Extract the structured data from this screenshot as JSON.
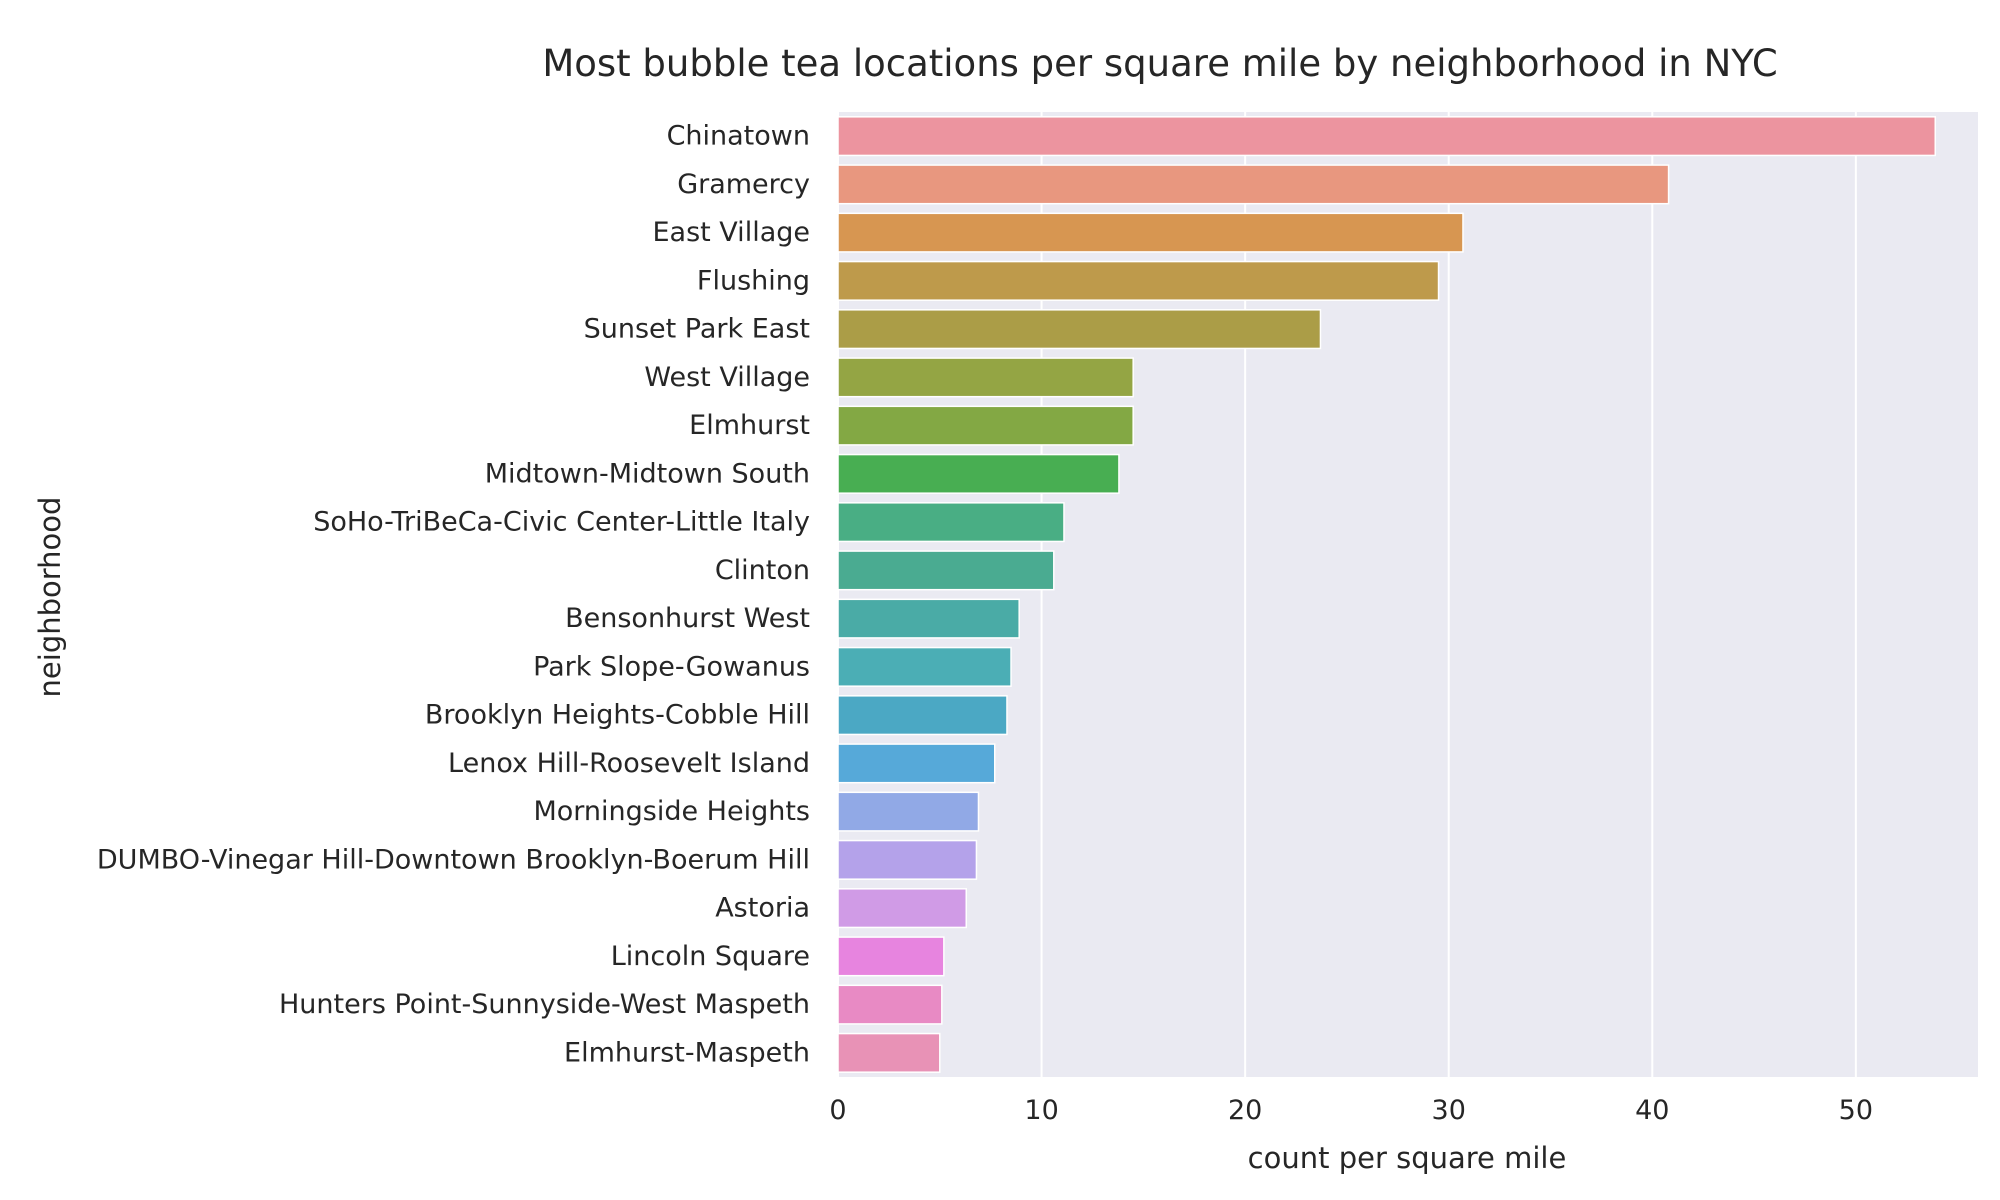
{
  "chart_data": {
    "type": "bar",
    "orientation": "horizontal",
    "title": "Most bubble tea locations per square mile by neighborhood in NYC",
    "xlabel": "count per square mile",
    "ylabel": "neighborhood",
    "xlim": [
      0,
      56
    ],
    "xticks": [
      0,
      10,
      20,
      30,
      40,
      50
    ],
    "grid": true,
    "legend": "none",
    "categories": [
      "Chinatown",
      "Gramercy",
      "East Village",
      "Flushing",
      "Sunset Park East",
      "West Village",
      "Elmhurst",
      "Midtown-Midtown South",
      "SoHo-TriBeCa-Civic Center-Little Italy",
      "Clinton",
      "Bensonhurst West",
      "Park Slope-Gowanus",
      "Brooklyn Heights-Cobble Hill",
      "Lenox Hill-Roosevelt Island",
      "Morningside Heights",
      "DUMBO-Vinegar Hill-Downtown Brooklyn-Boerum Hill",
      "Astoria",
      "Lincoln Square",
      "Hunters Point-Sunnyside-West Maspeth",
      "Elmhurst-Maspeth"
    ],
    "values": [
      53.9,
      40.8,
      30.7,
      29.5,
      23.7,
      14.5,
      14.5,
      13.8,
      11.1,
      10.6,
      8.9,
      8.5,
      8.3,
      7.7,
      6.9,
      6.8,
      6.3,
      5.2,
      5.1,
      5.0
    ],
    "colors": [
      "#ec949f",
      "#e8977f",
      "#d79651",
      "#be9a4b",
      "#ab9d47",
      "#94a544",
      "#83a844",
      "#48ae52",
      "#49ae84",
      "#4aab91",
      "#4aaba6",
      "#4baeb5",
      "#4ba8c4",
      "#56a9d9",
      "#91a9e6",
      "#b4a2ea",
      "#d09be6",
      "#e784df",
      "#e88ac4",
      "#e892b6"
    ],
    "background_color": "#eaeaf2",
    "grid_color": "#ffffff"
  }
}
